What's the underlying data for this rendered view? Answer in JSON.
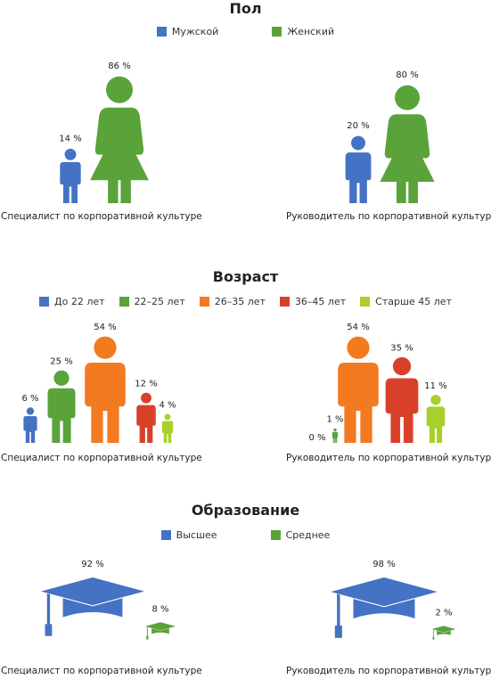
{
  "colors": {
    "blue": "#4472c4",
    "green": "#5aa33b",
    "orange": "#f47a20",
    "red": "#d9402a",
    "lime": "#a8cf2b"
  },
  "gender": {
    "title": "Пол",
    "legend": [
      "Мужской",
      "Женский"
    ]
  },
  "age": {
    "title": "Возраст",
    "legend": [
      "До 22 лет",
      "22–25 лет",
      "26–35 лет",
      "36–45 лет",
      "Старше 45 лет"
    ]
  },
  "education": {
    "title": "Образование",
    "legend": [
      "Высшее",
      "Среднее"
    ]
  },
  "chart_data": [
    {
      "type": "bar",
      "title": "Пол",
      "categories": [
        "Мужской",
        "Женский"
      ],
      "series": [
        {
          "name": "Специалист по корпоративной культуре",
          "values": [
            14,
            86
          ],
          "labels": [
            "14 %",
            "86 %"
          ]
        },
        {
          "name": "Руководитель по корпоративной культуре",
          "values": [
            20,
            80
          ],
          "labels": [
            "20 %",
            "80 %"
          ]
        }
      ]
    },
    {
      "type": "bar",
      "title": "Возраст",
      "categories": [
        "До 22 лет",
        "22–25 лет",
        "26–35 лет",
        "36–45 лет",
        "Старше 45 лет"
      ],
      "series": [
        {
          "name": "Специалист по корпоративной культуре",
          "values": [
            6,
            25,
            54,
            12,
            4
          ],
          "labels": [
            "6 %",
            "25 %",
            "54 %",
            "12 %",
            "4 %"
          ]
        },
        {
          "name": "Руководитель по корпоративной культуре",
          "values": [
            0,
            1,
            54,
            35,
            11
          ],
          "labels": [
            "0 %",
            "1 %",
            "54 %",
            "35 %",
            "11 %"
          ]
        }
      ]
    },
    {
      "type": "bar",
      "title": "Образование",
      "categories": [
        "Высшее",
        "Среднее"
      ],
      "series": [
        {
          "name": "Специалист по корпоративной культуре",
          "values": [
            92,
            8
          ],
          "labels": [
            "92 %",
            "8 %"
          ]
        },
        {
          "name": "Руководитель по корпоративной культуре",
          "values": [
            98,
            2
          ],
          "labels": [
            "98 %",
            "2 %"
          ]
        }
      ]
    }
  ]
}
